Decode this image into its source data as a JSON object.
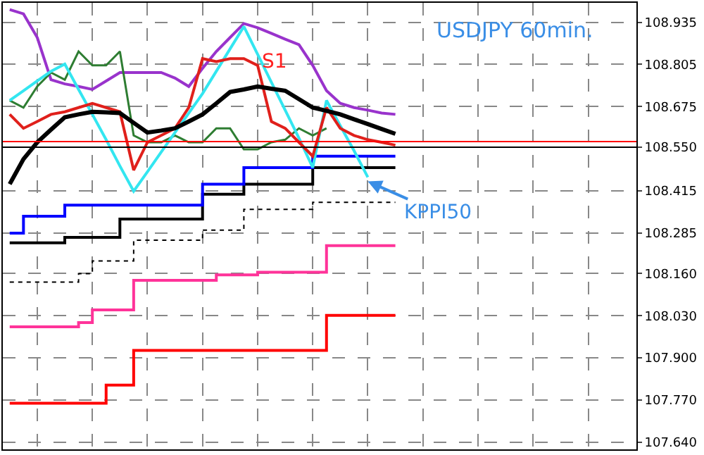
{
  "chart_data": {
    "type": "line",
    "title": "USDJPY 60min.",
    "categories": [
      null,
      null,
      null,
      null,
      null,
      null,
      null,
      null,
      null,
      null,
      null,
      null,
      null,
      null,
      null,
      null,
      null,
      null,
      null,
      null,
      null,
      null,
      null,
      null,
      null,
      null,
      null,
      null,
      null,
      null,
      null,
      null,
      null,
      null,
      null,
      null,
      null,
      null,
      null,
      null,
      null,
      null,
      null,
      null,
      null,
      null
    ],
    "series": [
      {
        "type": "step",
        "color": "#ff0000",
        "values": [
          107.76,
          107.76,
          107.76,
          107.76,
          107.76,
          107.76,
          107.76,
          107.816,
          107.816,
          107.923,
          107.923,
          107.923,
          107.923,
          107.923,
          107.923,
          107.923,
          107.923,
          107.923,
          107.923,
          107.923,
          107.923,
          107.923,
          107.923,
          108.031,
          108.031,
          108.031,
          108.031,
          108.031,
          108.031,
          null,
          null,
          null,
          null,
          null,
          null,
          null,
          null,
          null,
          null,
          null,
          null,
          null,
          null,
          null,
          null,
          null
        ]
      },
      {
        "type": "step",
        "color": "#ff3399",
        "values": [
          107.996,
          107.996,
          107.996,
          107.996,
          107.996,
          108.009,
          108.048,
          108.048,
          108.048,
          108.139,
          108.139,
          108.139,
          108.139,
          108.139,
          108.139,
          108.156,
          108.156,
          108.156,
          108.164,
          108.164,
          108.164,
          108.164,
          108.164,
          108.246,
          108.246,
          108.246,
          108.246,
          108.246,
          108.246,
          null,
          null,
          null,
          null,
          null,
          null,
          null,
          null,
          null,
          null,
          null,
          null,
          null,
          null,
          null,
          null,
          null
        ]
      },
      {
        "type": "step",
        "color": "#000000",
        "line_style": "dotted",
        "values": [
          108.134,
          108.134,
          108.134,
          108.134,
          108.134,
          108.16,
          108.199,
          108.199,
          108.199,
          108.263,
          108.263,
          108.263,
          108.263,
          108.263,
          108.294,
          108.294,
          108.294,
          108.358,
          108.358,
          108.358,
          108.358,
          108.358,
          108.38,
          108.38,
          108.38,
          108.38,
          108.38,
          108.38,
          108.38,
          null,
          null,
          null,
          null,
          null,
          null,
          null,
          null,
          null,
          null,
          null,
          null,
          null,
          null,
          null,
          null,
          null
        ]
      },
      {
        "type": "step",
        "color": "#000000",
        "values": [
          108.255,
          108.255,
          108.255,
          108.255,
          108.272,
          108.272,
          108.272,
          108.272,
          108.328,
          108.328,
          108.328,
          108.328,
          108.328,
          108.328,
          108.405,
          108.405,
          108.405,
          108.436,
          108.436,
          108.436,
          108.436,
          108.436,
          108.487,
          108.487,
          108.487,
          108.487,
          108.487,
          108.487,
          108.487,
          null,
          null,
          null,
          null,
          null,
          null,
          null,
          null,
          null,
          null,
          null,
          null,
          null,
          null,
          null,
          null,
          null
        ]
      },
      {
        "type": "step",
        "color": "#0000ff",
        "values": [
          108.285,
          108.337,
          108.337,
          108.337,
          108.371,
          108.371,
          108.371,
          108.371,
          108.371,
          108.371,
          108.371,
          108.371,
          108.371,
          108.371,
          108.436,
          108.436,
          108.436,
          108.487,
          108.487,
          108.487,
          108.487,
          108.487,
          108.522,
          108.522,
          108.522,
          108.522,
          108.522,
          108.522,
          108.522,
          null,
          null,
          null,
          null,
          null,
          null,
          null,
          null,
          null,
          null,
          null,
          null,
          null,
          null,
          null,
          null,
          null
        ]
      },
      {
        "color": "#9933cc",
        "values": [
          108.974,
          108.961,
          108.888,
          108.758,
          108.745,
          108.737,
          108.728,
          108.754,
          108.78,
          108.78,
          108.78,
          108.78,
          108.763,
          108.737,
          108.793,
          108.845,
          108.888,
          108.931,
          108.918,
          108.901,
          108.883,
          108.866,
          108.802,
          108.724,
          108.685,
          108.672,
          108.664,
          108.655,
          108.651,
          null,
          null,
          null,
          null,
          null,
          null,
          null,
          null,
          null,
          null,
          null,
          null,
          null,
          null,
          null,
          null,
          null
        ]
      },
      {
        "color": "#2e7d32",
        "values": [
          108.694,
          108.672,
          108.737,
          108.78,
          108.758,
          108.845,
          108.802,
          108.802,
          108.845,
          108.586,
          108.565,
          108.565,
          108.586,
          108.565,
          108.565,
          108.608,
          108.608,
          108.543,
          108.543,
          108.565,
          108.573,
          108.608,
          108.586,
          108.608,
          null,
          null,
          null,
          null,
          null,
          null,
          null,
          null,
          null,
          null,
          null,
          null,
          null,
          null,
          null,
          null,
          null,
          null,
          null,
          null,
          null,
          null
        ]
      },
      {
        "color": "#33e6f0",
        "values": [
          108.694,
          108.724,
          108.754,
          108.784,
          108.806,
          108.728,
          108.651,
          108.573,
          108.492,
          108.414,
          108.474,
          108.535,
          108.595,
          108.655,
          108.715,
          108.784,
          108.853,
          108.922,
          108.836,
          108.75,
          108.664,
          108.578,
          108.487,
          108.694,
          108.616,
          108.539,
          108.457,
          null,
          null,
          null,
          null,
          null,
          null,
          null,
          null,
          null,
          null,
          null,
          null,
          null,
          null,
          null,
          null,
          null,
          null,
          null
        ]
      },
      {
        "color": "#e0201b",
        "values": [
          108.651,
          108.608,
          108.629,
          108.651,
          108.659,
          108.672,
          108.685,
          108.672,
          108.659,
          108.479,
          108.565,
          108.586,
          108.608,
          108.672,
          108.823,
          108.814,
          108.823,
          108.823,
          108.802,
          108.629,
          108.608,
          108.565,
          108.522,
          108.672,
          108.608,
          108.586,
          108.573,
          108.565,
          108.556,
          null,
          null,
          null,
          null,
          null,
          null,
          null,
          null,
          null,
          null,
          null,
          null,
          null,
          null,
          null,
          null,
          null
        ]
      },
      {
        "color": "#000000",
        "values": [
          108.436,
          108.513,
          108.565,
          108.604,
          108.642,
          108.651,
          108.659,
          108.657,
          108.655,
          108.625,
          108.595,
          108.601,
          108.608,
          108.629,
          108.651,
          108.685,
          108.72,
          108.728,
          108.737,
          108.73,
          108.724,
          108.698,
          108.672,
          108.662,
          108.651,
          108.636,
          108.621,
          108.606,
          108.591,
          null,
          null,
          null,
          null,
          null,
          null,
          null,
          null,
          null,
          null,
          null,
          null,
          null,
          null,
          null,
          null,
          null
        ]
      }
    ],
    "ylim": [
      107.618,
      108.995
    ],
    "yticks": [
      {
        "value": 107.64,
        "label": "107.640"
      },
      {
        "value": 107.77,
        "label": "107.770"
      },
      {
        "value": 107.9,
        "label": "107.900"
      },
      {
        "value": 108.03,
        "label": "108.030"
      },
      {
        "value": 108.16,
        "label": "108.160"
      },
      {
        "value": 108.285,
        "label": "108.285"
      },
      {
        "value": 108.415,
        "label": "108.415"
      },
      {
        "value": 108.55,
        "label": "108.550"
      },
      {
        "value": 108.675,
        "label": "108.675"
      },
      {
        "value": 108.805,
        "label": "108.805"
      },
      {
        "value": 108.935,
        "label": "108.935"
      }
    ],
    "ref_lines": [
      {
        "axis": "y",
        "value": 108.567,
        "color": "#ff0000"
      },
      {
        "axis": "y",
        "value": 108.55,
        "color": "#000000"
      }
    ],
    "annotations": [
      "S1",
      "KPPI50"
    ],
    "grid": true,
    "marker": "none",
    "line_style": "solid"
  }
}
